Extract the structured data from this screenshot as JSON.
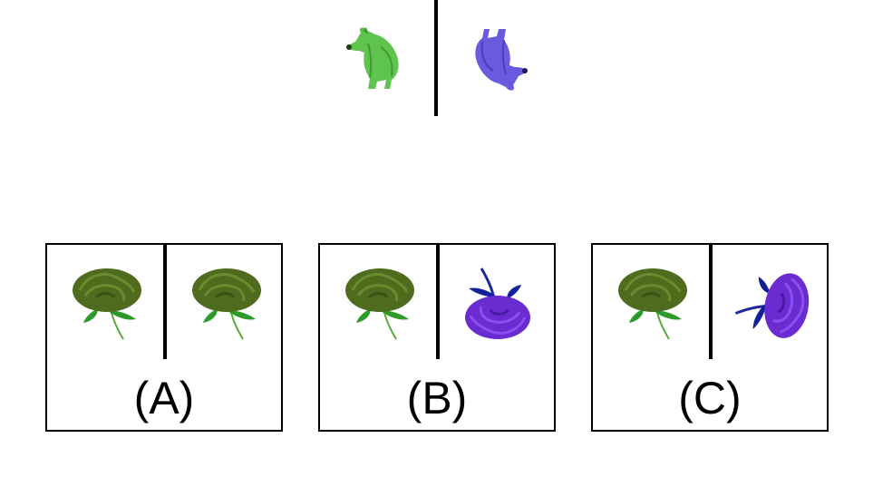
{
  "options": [
    {
      "label": "(A)"
    },
    {
      "label": "(B)"
    },
    {
      "label": "(C)"
    }
  ]
}
